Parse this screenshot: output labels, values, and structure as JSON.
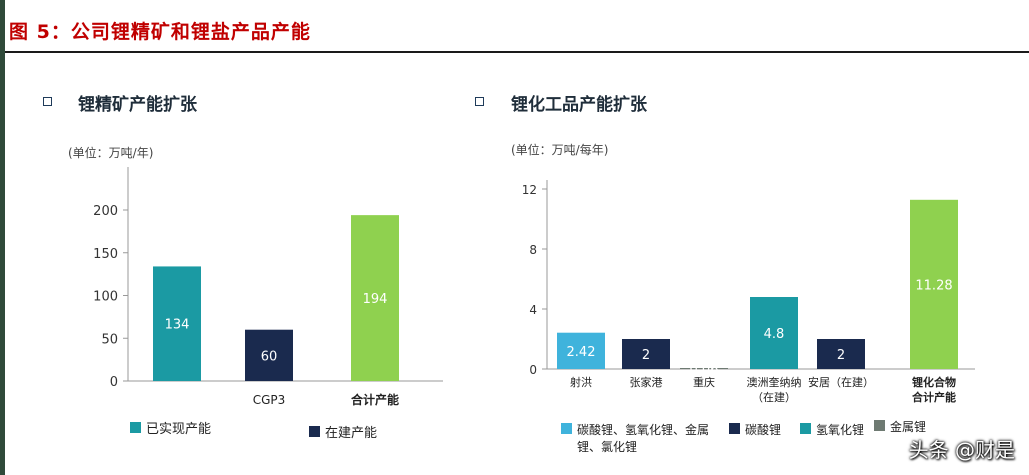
{
  "header": {
    "figure_title": "图 5：公司锂精矿和锂盐产品产能"
  },
  "watermark": "头条 @财是",
  "colors": {
    "title_red": "#c00000",
    "teal": "#1b9aa3",
    "navy": "#1a2a4e",
    "green": "#8fd14f",
    "light_blue": "#3fb3dc",
    "gray": "#6e7a72"
  },
  "chart_data": [
    {
      "type": "bar",
      "title": "锂精矿产能扩张",
      "ylabel": "(单位：万吨/年)",
      "ylim": [
        0,
        200
      ],
      "yticks": [
        "0",
        "50",
        "100",
        "150",
        "200"
      ],
      "grid": false,
      "legend_position": "bottom",
      "categories": [
        "",
        "CGP3",
        "合计产能"
      ],
      "values": [
        134,
        60,
        194
      ],
      "labels": [
        "134",
        "60",
        "194"
      ],
      "bar_colors": [
        "#1b9aa3",
        "#1a2a4e",
        "#8fd14f"
      ],
      "legend": [
        {
          "name": "已实现产能",
          "color": "#1b9aa3"
        },
        {
          "name": "在建产能",
          "color": "#1a2a4e"
        }
      ]
    },
    {
      "type": "bar",
      "title": "锂化工品产能扩张",
      "ylabel": "(单位：万吨/每年)",
      "ylim": [
        0,
        12
      ],
      "yticks": [
        "0",
        "4",
        "8",
        "12"
      ],
      "grid": false,
      "legend_position": "bottom",
      "categories": [
        "射洪",
        "张家港",
        "重庆",
        "澳洲奎纳纳\n（在建）",
        "安居（在建）",
        "锂化合物\n合计产能"
      ],
      "values": [
        2.42,
        2,
        0.06,
        4.8,
        2,
        11.28
      ],
      "labels": [
        "2.42",
        "2",
        "0.06",
        "4.8",
        "2",
        "11.28"
      ],
      "bar_colors": [
        "#3fb3dc",
        "#1a2a4e",
        "#6e7a72",
        "#1b9aa3",
        "#1a2a4e",
        "#8fd14f"
      ],
      "legend": [
        {
          "name": "碳酸锂、氢氧化锂、金属锂、氯化锂",
          "color": "#3fb3dc"
        },
        {
          "name": "碳酸锂",
          "color": "#1a2a4e"
        },
        {
          "name": "氢氧化锂",
          "color": "#1b9aa3"
        },
        {
          "name": "金属锂",
          "color": "#6e7a72"
        }
      ]
    }
  ]
}
